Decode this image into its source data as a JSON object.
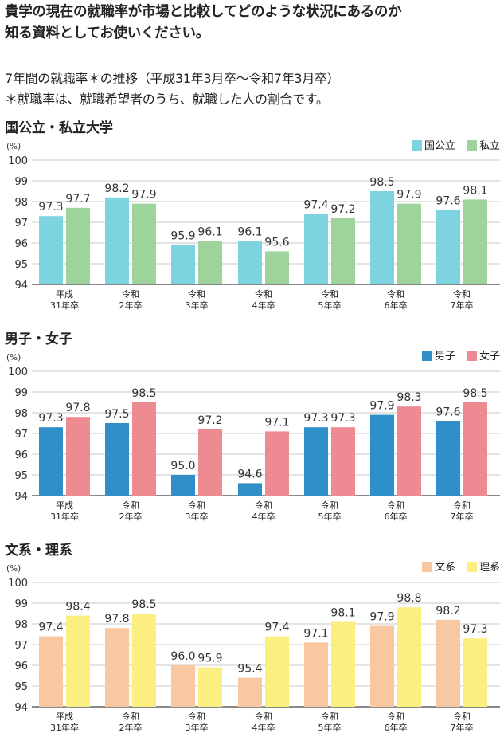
{
  "intro": {
    "line1": "貴学の現在の就職率が市場と比較してどのような状況にあるのか",
    "line2": "知る資料としてお使いください。"
  },
  "notes": {
    "line1": "7年間の就職率＊の推移（平成31年3月卒〜令和7年3月卒）",
    "line2": "＊就職率は、就職希望者のうち、就職した人の割合です。"
  },
  "chart_data": [
    {
      "type": "bar",
      "title": "国公立・私立大学",
      "ylabel": "(%)",
      "ylim": [
        94,
        100
      ],
      "yticks": [
        94,
        95,
        96,
        97,
        98,
        99,
        100
      ],
      "legend": "top-right",
      "grid": true,
      "categories": [
        [
          "平成",
          "31年卒"
        ],
        [
          "令和",
          "2年卒"
        ],
        [
          "令和",
          "3年卒"
        ],
        [
          "令和",
          "4年卒"
        ],
        [
          "令和",
          "5年卒"
        ],
        [
          "令和",
          "6年卒"
        ],
        [
          "令和",
          "7年卒"
        ]
      ],
      "series": [
        {
          "name": "国公立",
          "color": "#7dd3e0",
          "values": [
            97.3,
            98.2,
            95.9,
            96.1,
            97.4,
            98.5,
            97.6
          ]
        },
        {
          "name": "私立",
          "color": "#9ed49c",
          "values": [
            97.7,
            97.9,
            96.1,
            95.6,
            97.2,
            97.9,
            98.1
          ]
        }
      ]
    },
    {
      "type": "bar",
      "title": "男子・女子",
      "ylabel": "(%)",
      "ylim": [
        94,
        100
      ],
      "yticks": [
        94,
        95,
        96,
        97,
        98,
        99,
        100
      ],
      "legend": "top-right",
      "grid": true,
      "categories": [
        [
          "平成",
          "31年卒"
        ],
        [
          "令和",
          "2年卒"
        ],
        [
          "令和",
          "3年卒"
        ],
        [
          "令和",
          "4年卒"
        ],
        [
          "令和",
          "5年卒"
        ],
        [
          "令和",
          "6年卒"
        ],
        [
          "令和",
          "7年卒"
        ]
      ],
      "series": [
        {
          "name": "男子",
          "color": "#2f8fc9",
          "values": [
            97.3,
            97.5,
            95.0,
            94.6,
            97.3,
            97.9,
            97.6
          ]
        },
        {
          "name": "女子",
          "color": "#ee8a92",
          "values": [
            97.8,
            98.5,
            97.2,
            97.1,
            97.3,
            98.3,
            98.5
          ]
        }
      ]
    },
    {
      "type": "bar",
      "title": "文系・理系",
      "ylabel": "(%)",
      "ylim": [
        94,
        100
      ],
      "yticks": [
        94,
        95,
        96,
        97,
        98,
        99,
        100
      ],
      "legend": "top-right",
      "grid": true,
      "categories": [
        [
          "平成",
          "31年卒"
        ],
        [
          "令和",
          "2年卒"
        ],
        [
          "令和",
          "3年卒"
        ],
        [
          "令和",
          "4年卒"
        ],
        [
          "令和",
          "5年卒"
        ],
        [
          "令和",
          "6年卒"
        ],
        [
          "令和",
          "7年卒"
        ]
      ],
      "series": [
        {
          "name": "文系",
          "color": "#f9c8a0",
          "values": [
            97.4,
            97.8,
            96.0,
            95.4,
            97.1,
            97.9,
            98.2
          ]
        },
        {
          "name": "理系",
          "color": "#fbef82",
          "values": [
            98.4,
            98.5,
            95.9,
            97.4,
            98.1,
            98.8,
            97.3
          ]
        }
      ]
    }
  ]
}
